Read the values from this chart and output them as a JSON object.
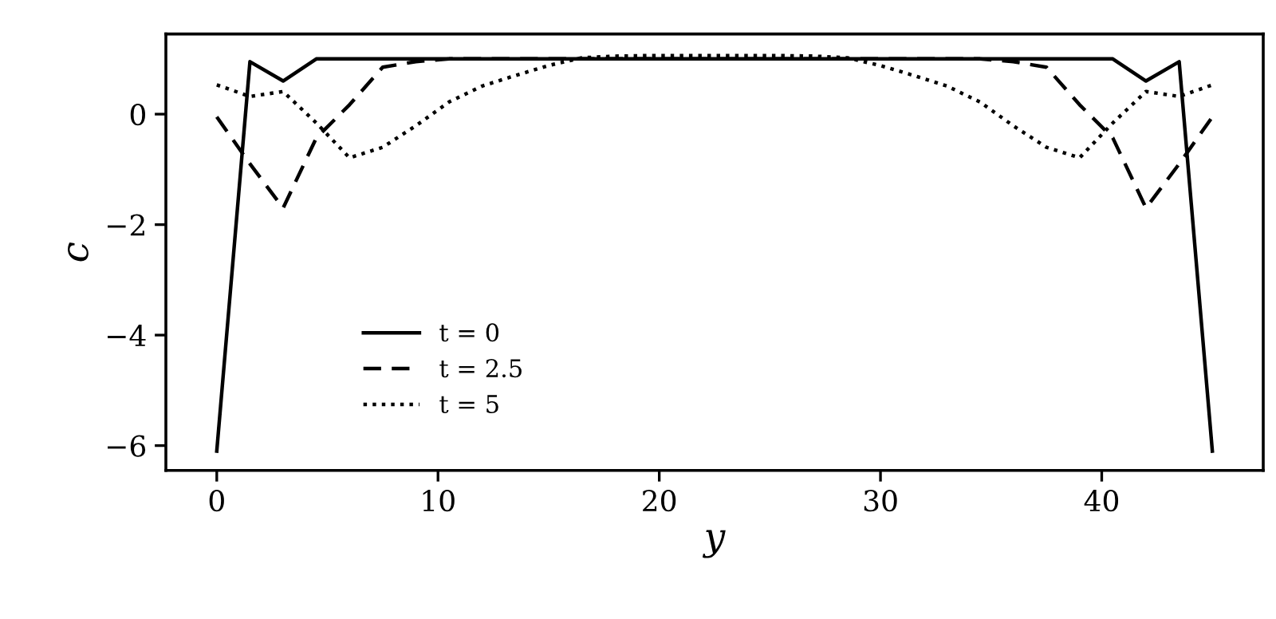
{
  "chart_data": {
    "type": "line",
    "xlabel": "y",
    "ylabel": "c",
    "x": [
      0,
      1.5,
      3,
      4.5,
      6,
      7.5,
      9,
      10.5,
      12,
      13.5,
      15,
      16.5,
      18,
      19.5,
      21,
      22.5,
      24,
      25.5,
      27,
      28.5,
      30,
      31.5,
      33,
      34.5,
      36,
      37.5,
      39,
      40.5,
      42,
      43.5,
      45
    ],
    "series": [
      {
        "name": "t = 0",
        "color": "#000000",
        "line_style": "solid",
        "values": [
          -6.1,
          0.95,
          0.6,
          1.0,
          1.0,
          1.0,
          1.0,
          1.0,
          1.0,
          1.0,
          1.0,
          1.0,
          1.0,
          1.0,
          1.0,
          1.0,
          1.0,
          1.0,
          1.0,
          1.0,
          1.0,
          1.0,
          1.0,
          1.0,
          1.0,
          1.0,
          1.0,
          1.0,
          0.6,
          0.95,
          -6.1
        ]
      },
      {
        "name": "t = 2.5",
        "color": "#000000",
        "line_style": "dashed",
        "values": [
          -0.05,
          -0.9,
          -1.7,
          -0.43,
          0.17,
          0.85,
          0.95,
          1.0,
          1.0,
          1.0,
          1.0,
          1.0,
          1.0,
          1.0,
          1.0,
          1.0,
          1.0,
          1.0,
          1.0,
          1.0,
          1.0,
          1.0,
          1.0,
          1.0,
          0.95,
          0.85,
          0.17,
          -0.43,
          -1.7,
          -0.9,
          -0.05
        ]
      },
      {
        "name": "t = 5",
        "color": "#000000",
        "line_style": "dotted",
        "values": [
          0.53,
          0.32,
          0.41,
          -0.16,
          -0.79,
          -0.6,
          -0.21,
          0.22,
          0.51,
          0.7,
          0.88,
          1.02,
          1.05,
          1.06,
          1.06,
          1.06,
          1.06,
          1.06,
          1.05,
          1.02,
          0.88,
          0.7,
          0.51,
          0.22,
          -0.21,
          -0.6,
          -0.79,
          -0.16,
          0.41,
          0.32,
          0.53
        ]
      }
    ],
    "xlim": [
      -2.3,
      47.3
    ],
    "ylim": [
      -6.45,
      1.45
    ],
    "xticks": [
      0,
      10,
      20,
      30,
      40
    ],
    "yticks": [
      {
        "value": -6,
        "label": "−6"
      },
      {
        "value": -4,
        "label": "−4"
      },
      {
        "value": -2,
        "label": "−2"
      },
      0
    ],
    "grid": false,
    "legend": "bottom left"
  }
}
